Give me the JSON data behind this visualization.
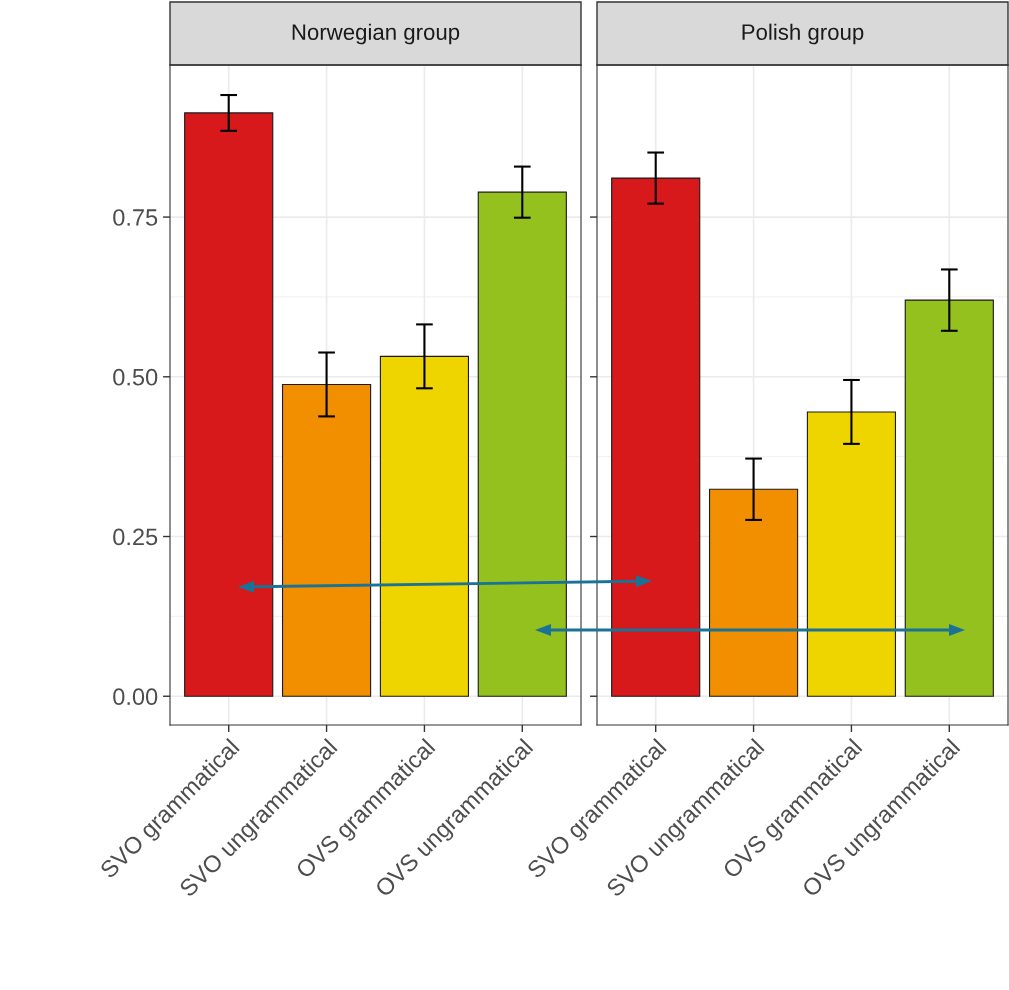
{
  "chart_data": [
    {
      "type": "bar",
      "title": "Norwegian group",
      "categories": [
        "SVO grammatical",
        "SVO ungrammatical",
        "OVS grammatical",
        "OVS ungrammatical"
      ],
      "values": [
        0.913,
        0.488,
        0.532,
        0.789
      ],
      "errors": [
        0.028,
        0.05,
        0.05,
        0.04
      ],
      "colors": [
        "#d7191c",
        "#f18f00",
        "#efd500",
        "#95c11f"
      ],
      "ylim": [
        -0.045,
        0.988
      ],
      "yticks": [
        {
          "value": 0,
          "label": "0.00"
        },
        {
          "value": 0.25,
          "label": "0.25"
        },
        {
          "value": 0.5,
          "label": "0.50"
        },
        {
          "value": 0.75,
          "label": "0.75"
        }
      ],
      "grid": true
    },
    {
      "type": "bar",
      "title": "Polish group",
      "categories": [
        "SVO grammatical",
        "SVO ungrammatical",
        "OVS grammatical",
        "OVS ungrammatical"
      ],
      "values": [
        0.811,
        0.324,
        0.445,
        0.62
      ],
      "errors": [
        0.04,
        0.048,
        0.05,
        0.048
      ],
      "colors": [
        "#d7191c",
        "#f18f00",
        "#efd500",
        "#95c11f"
      ],
      "ylim": [
        -0.045,
        0.988
      ],
      "yticks": [
        0,
        0.25,
        0.5,
        0.75
      ],
      "grid": true,
      "tick_labels": "x"
    }
  ]
}
